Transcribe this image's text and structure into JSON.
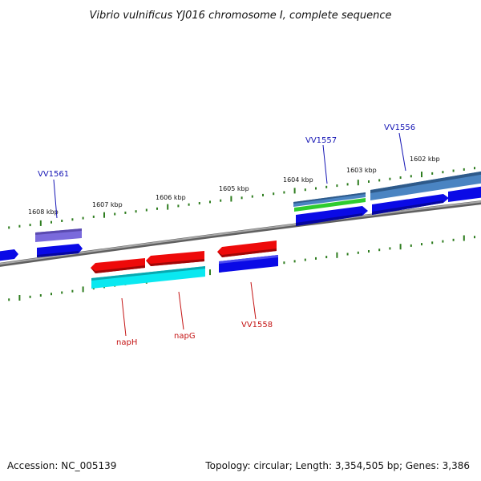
{
  "title": "Vibrio vulnificus YJ016 chromosome I, complete sequence",
  "footer": {
    "accession": "Accession: NC_005139",
    "topology": "Topology: circular; Length: 3,354,505 bp; Genes: 3,386"
  },
  "colors": {
    "backbone": "#8a8a8a",
    "tick": "#2e7d1f",
    "label_blue": "#1414b4",
    "label_red": "#c41414",
    "gene_blue": "#0a0ae6",
    "gene_red": "#ee0a0a",
    "gene_cyan": "#0ae8f0",
    "gene_purple": "#7a6adc",
    "gene_steel": "#4a84c2",
    "gene_green": "#2ecc2e"
  },
  "ticks": [
    "1608 kbp",
    "1607 kbp",
    "1606 kbp",
    "1605 kbp",
    "1604 kbp",
    "1603 kbp",
    "1602 kbp"
  ],
  "gene_labels": {
    "vv1561": "VV1561",
    "vv1557": "VV1557",
    "vv1556": "VV1556",
    "naph": "napH",
    "napg": "napG",
    "vv1558": "VV1558"
  }
}
